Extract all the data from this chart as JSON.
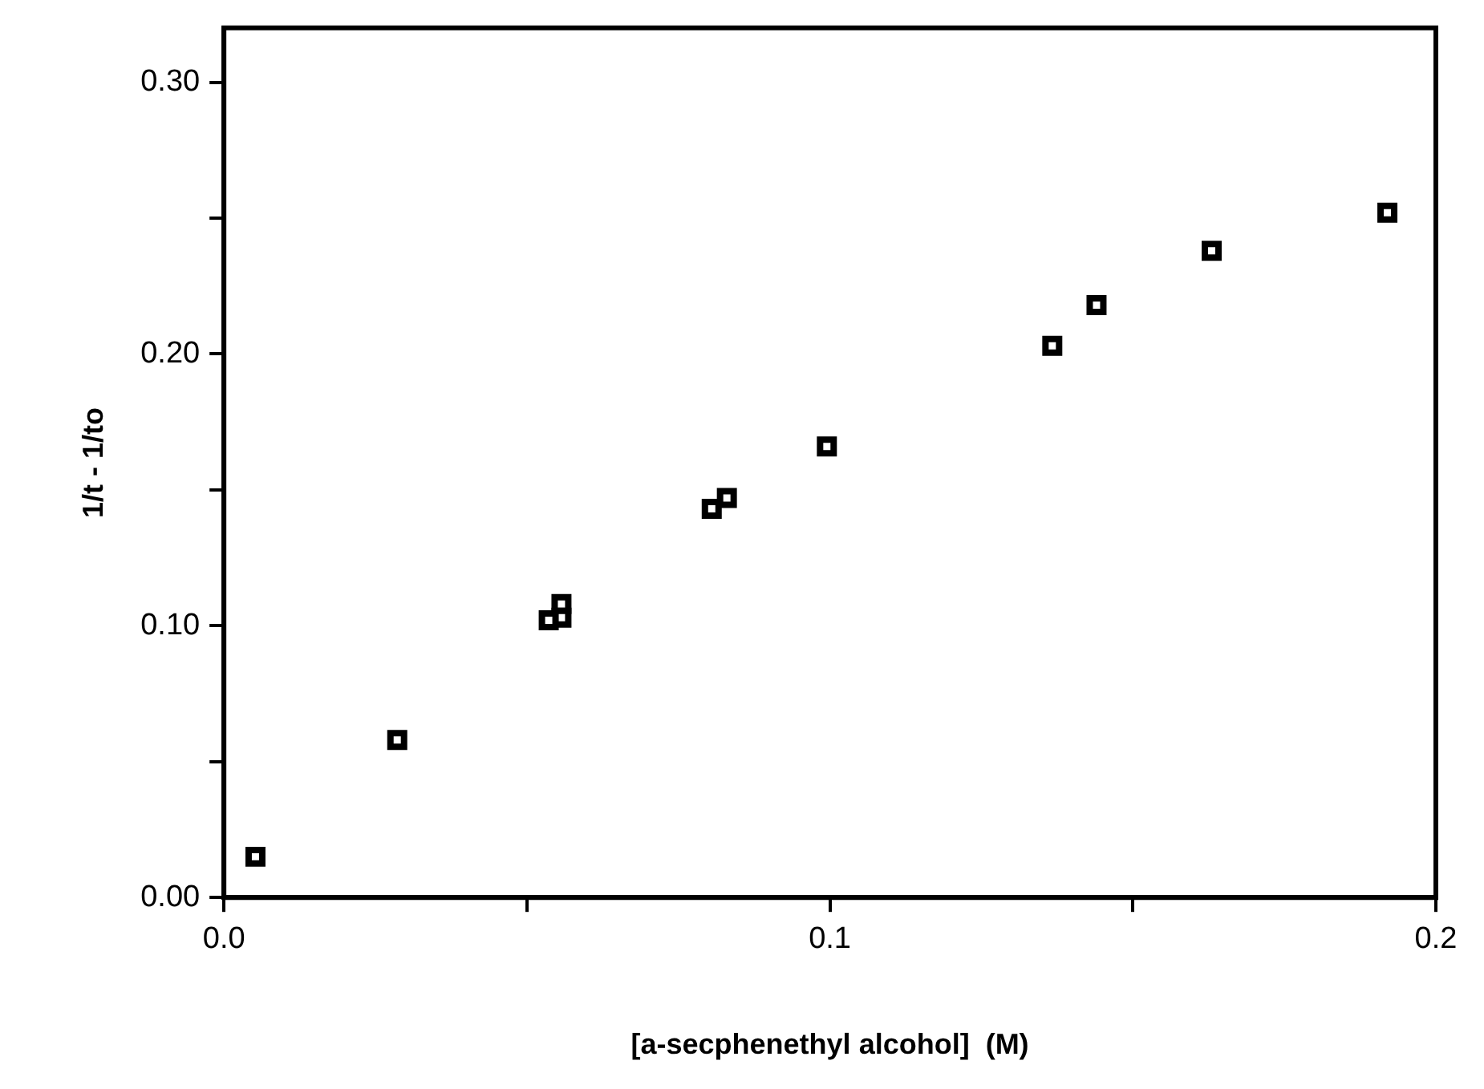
{
  "chart_data": {
    "type": "scatter",
    "xlabel": "[a-secphenethyl alcohol]  (M)",
    "ylabel": "1/t - 1/to",
    "x": [
      0.0052,
      0.0286,
      0.0536,
      0.0557,
      0.0557,
      0.0805,
      0.083,
      0.0995,
      0.1367,
      0.144,
      0.163,
      0.192
    ],
    "series": [
      {
        "color": "#000000",
        "values": [
          0.015,
          0.058,
          0.102,
          0.103,
          0.108,
          0.143,
          0.147,
          0.166,
          0.203,
          0.218,
          0.238,
          0.252
        ]
      }
    ],
    "xlim": [
      0,
      0.2
    ],
    "ylim": [
      0,
      0.32
    ],
    "xticks": [
      {
        "value": 0,
        "label": "0.0"
      },
      {
        "value": 0.05,
        "label": null
      },
      {
        "value": 0.1,
        "label": "0.1"
      },
      {
        "value": 0.15,
        "label": null
      },
      {
        "value": 0.2,
        "label": "0.2"
      }
    ],
    "yticks": [
      {
        "value": 0,
        "label": "0.00"
      },
      {
        "value": 0.05,
        "label": null
      },
      {
        "value": 0.1,
        "label": "0.10"
      },
      {
        "value": 0.15,
        "label": null
      },
      {
        "value": 0.2,
        "label": "0.20"
      },
      {
        "value": 0.25,
        "label": null
      },
      {
        "value": 0.3,
        "label": "0.30"
      }
    ],
    "marker": "square",
    "grid": false,
    "legend": false
  }
}
